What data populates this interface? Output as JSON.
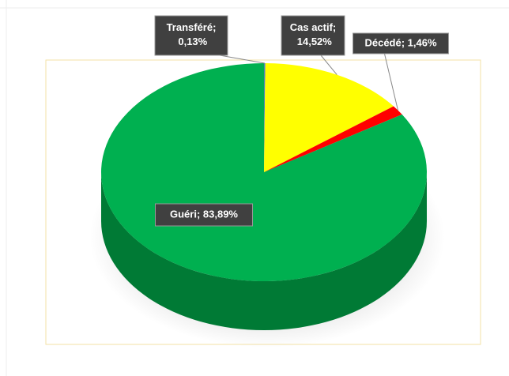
{
  "chart_data": {
    "type": "pie",
    "values": [
      0.13,
      14.52,
      1.46,
      83.89
    ],
    "value_labels": [
      "Transféré; 0,13%",
      "Cas actif; 14,52%",
      "Décédé; 1,46%",
      "Guéri; 83,89%"
    ],
    "colors": [
      "#4f81bd",
      "#ffff00",
      "#ff0000",
      "#00b050"
    ],
    "depth_color": "#007a35",
    "start_angle": 0,
    "direction": "clockwise"
  }
}
